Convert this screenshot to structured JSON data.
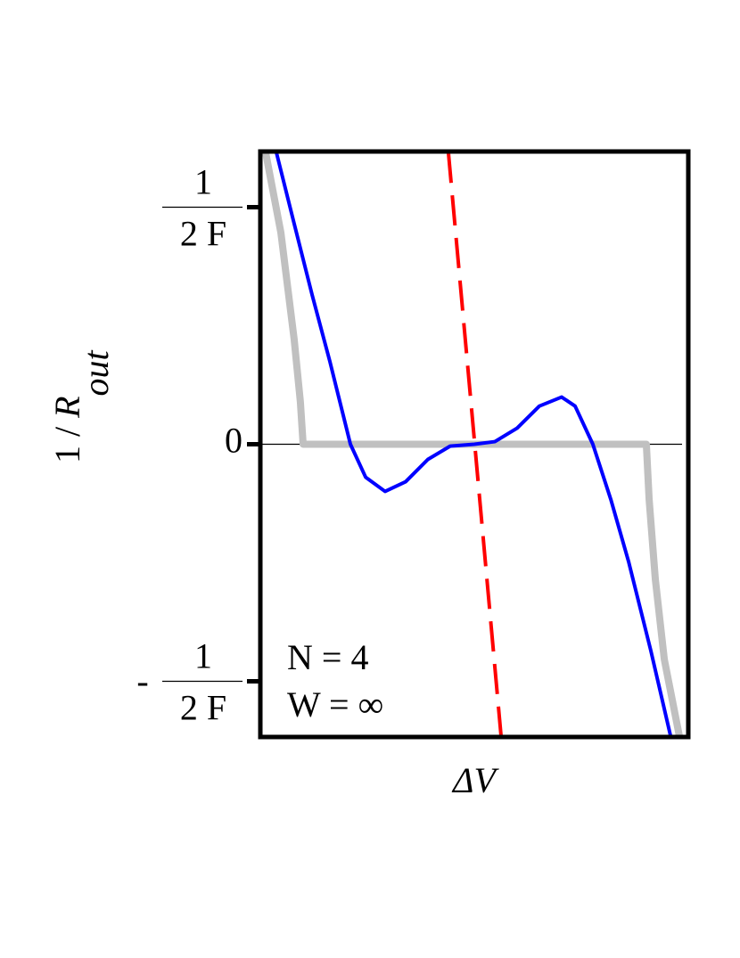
{
  "chart_data": {
    "type": "line",
    "xlabel": "ΔV",
    "ylabel": {
      "main": "1 / ",
      "var": "R",
      "sub": "out"
    },
    "xlim": [
      -1,
      1
    ],
    "ylim": [
      -1.235,
      1.235
    ],
    "yticks": [
      {
        "value": 1,
        "label": {
          "numerator": "1",
          "denominator": "2 F"
        }
      },
      {
        "value": 0,
        "label": "0"
      },
      {
        "value": -1,
        "label": {
          "sign": "-",
          "numerator": "1",
          "denominator": "2 F"
        }
      }
    ],
    "annotations": [
      "N = 4",
      "W = ∞"
    ],
    "series": [
      {
        "color": "#c0c0c0",
        "width": 8,
        "dash": false,
        "x": [
          -0.975,
          -0.904,
          -0.842,
          -0.813,
          -0.8,
          0.804,
          0.817,
          0.846,
          0.888,
          0.958
        ],
        "values": [
          1.23,
          0.893,
          0.443,
          0.18,
          0,
          0,
          -0.233,
          -0.57,
          -0.908,
          -1.23
        ]
      },
      {
        "color": "#0000ff",
        "width": 4,
        "dash": false,
        "x": [
          -0.925,
          -0.842,
          -0.758,
          -0.675,
          -0.579,
          -0.508,
          -0.417,
          -0.321,
          -0.217,
          -0.113,
          0,
          0.096,
          0.2,
          0.304,
          0.408,
          0.471,
          0.554,
          0.638,
          0.721,
          0.825,
          0.917
        ],
        "values": [
          1.231,
          0.931,
          0.63,
          0.349,
          0,
          -0.139,
          -0.199,
          -0.158,
          -0.064,
          -0.008,
          0,
          0.011,
          0.068,
          0.161,
          0.199,
          0.161,
          0,
          -0.233,
          -0.495,
          -0.871,
          -1.23
        ]
      },
      {
        "color": "#ff0000",
        "width": 4,
        "dash": true,
        "x": [
          -0.121,
          0.125
        ],
        "values": [
          1.23,
          -1.23
        ]
      }
    ]
  }
}
